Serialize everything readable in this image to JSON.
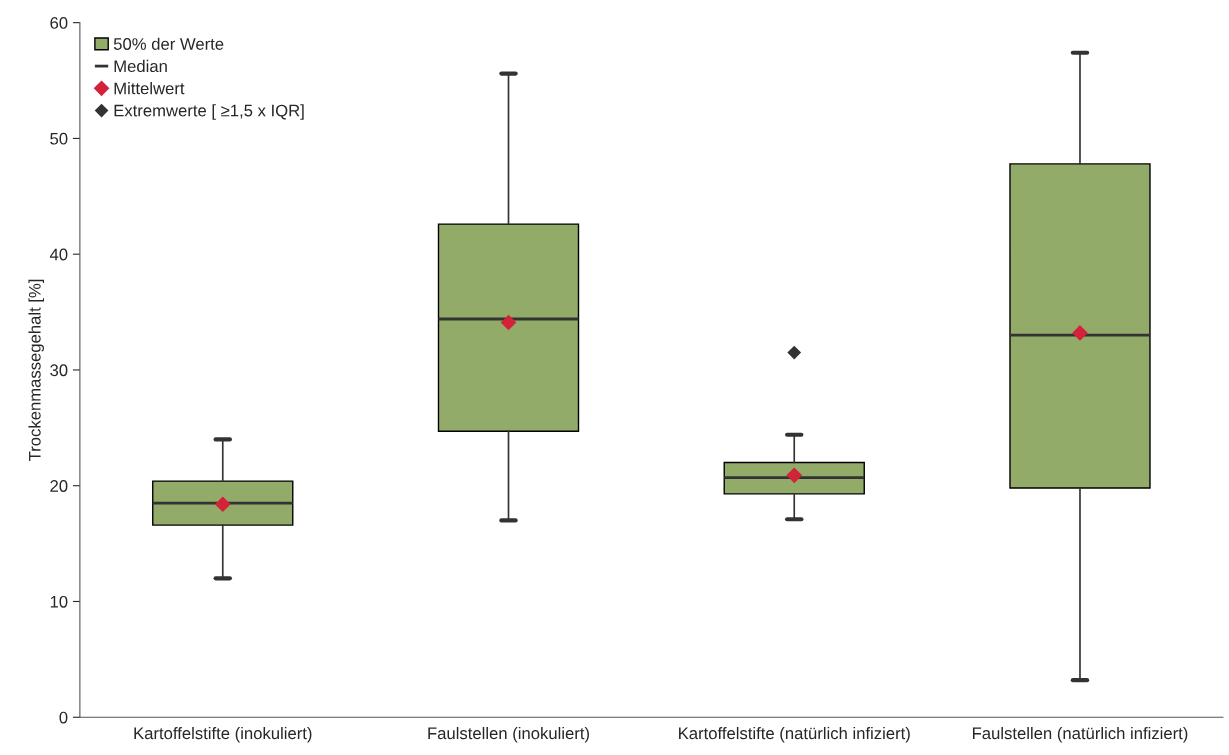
{
  "chart_data": {
    "type": "box",
    "ylabel": "Trockenmassegehalt [%]",
    "categories": [
      "Kartoffelstifte (inokuliert)",
      "Faulstellen (inokuliert)",
      "Kartoffelstifte (natürlich infiziert)",
      "Faulstellen (natürlich infiziert)"
    ],
    "series": [
      {
        "name": "50% der Werte",
        "color": "#93ab69",
        "boxes": [
          {
            "low": 12.0,
            "q1": 16.6,
            "median": 18.5,
            "q3": 20.4,
            "high": 24.0,
            "mean": 18.4
          },
          {
            "low": 17.0,
            "q1": 24.7,
            "median": 34.4,
            "q3": 42.6,
            "high": 55.6,
            "mean": 34.1
          },
          {
            "low": 17.1,
            "q1": 19.3,
            "median": 20.7,
            "q3": 22.0,
            "high": 24.4,
            "mean": 20.9,
            "outliers": [
              31.5
            ]
          },
          {
            "low": 3.2,
            "q1": 19.8,
            "median": 33.0,
            "q3": 47.8,
            "high": 57.4,
            "mean": 33.2
          }
        ]
      }
    ],
    "annotations": [
      "Median",
      "Mittelwert",
      "Extremwerte [ ≥1,5 x IQR]"
    ],
    "ylim": [
      0,
      60
    ],
    "yticks": [
      0,
      10,
      20,
      30,
      40,
      50,
      60
    ],
    "legend": "top left",
    "marker": "diamond"
  }
}
